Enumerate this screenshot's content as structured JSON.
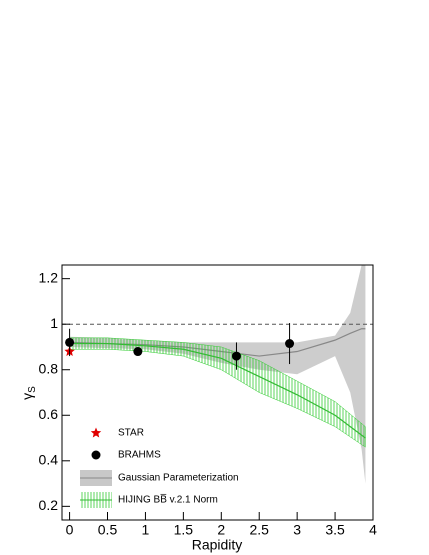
{
  "chart_data": {
    "type": "scatter",
    "x_label": "Rapidity",
    "y_label": "γ",
    "y_label_sub": "S",
    "xlim": [
      -0.1,
      4.0
    ],
    "ylim": [
      0.14,
      1.26
    ],
    "xticks": [
      0,
      0.5,
      1,
      1.5,
      2,
      2.5,
      3,
      3.5,
      4
    ],
    "yticks": [
      0.2,
      0.4,
      0.6,
      0.8,
      1,
      1.2
    ],
    "reference_line": 1,
    "series": [
      {
        "name": "STAR",
        "style": "star",
        "color": "#e00000",
        "x": [
          0
        ],
        "values": [
          0.88
        ]
      },
      {
        "name": "BRAHMS",
        "style": "points",
        "color": "#000000",
        "x": [
          0,
          0.9,
          2.2,
          2.9
        ],
        "values": [
          0.92,
          0.88,
          0.86,
          0.915
        ],
        "errors": [
          0.06,
          0.01,
          0.06,
          0.09
        ]
      },
      {
        "name": "Gaussian Parameterization",
        "style": "band",
        "color": "#c8c8c8",
        "line_color": "#888888",
        "x": [
          0,
          0.5,
          1,
          1.5,
          2,
          2.5,
          3,
          3.5,
          3.7,
          3.85,
          3.9
        ],
        "values": [
          0.92,
          0.915,
          0.91,
          0.9,
          0.88,
          0.86,
          0.88,
          0.93,
          0.96,
          0.98,
          0.98
        ],
        "lower": [
          0.9,
          0.895,
          0.89,
          0.87,
          0.83,
          0.8,
          0.78,
          0.86,
          0.7,
          0.45,
          0.3
        ],
        "upper": [
          0.945,
          0.94,
          0.93,
          0.92,
          0.92,
          0.92,
          0.92,
          0.95,
          1.05,
          1.26,
          1.26
        ]
      },
      {
        "name": "HIJING BB̅ v.2.1 Norm",
        "style": "hatched",
        "color": "#33cc33",
        "line_color": "#33bb33",
        "x": [
          0,
          0.5,
          1,
          1.5,
          2,
          2.5,
          3,
          3.5,
          3.9
        ],
        "values": [
          0.915,
          0.915,
          0.905,
          0.89,
          0.85,
          0.77,
          0.69,
          0.6,
          0.5
        ],
        "lower": [
          0.89,
          0.89,
          0.88,
          0.86,
          0.8,
          0.7,
          0.63,
          0.55,
          0.46
        ],
        "upper": [
          0.94,
          0.94,
          0.93,
          0.92,
          0.9,
          0.84,
          0.75,
          0.66,
          0.55
        ]
      }
    ]
  }
}
